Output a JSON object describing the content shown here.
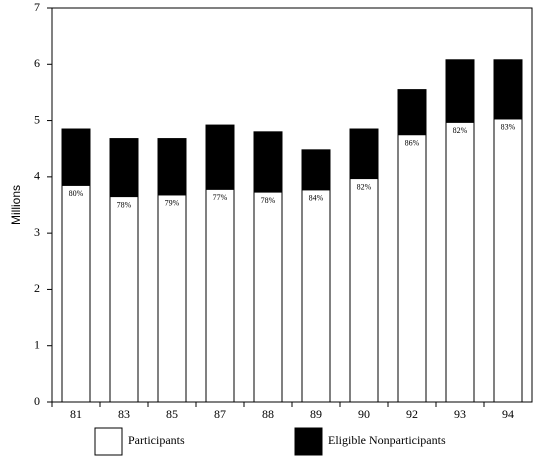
{
  "chart_data": {
    "type": "bar",
    "stacked": true,
    "y_label": "Millions",
    "categories": [
      "81",
      "83",
      "85",
      "87",
      "88",
      "89",
      "90",
      "92",
      "93",
      "94"
    ],
    "series": [
      {
        "name": "Participants",
        "color": "#ffffff",
        "values": [
          3.85,
          3.65,
          3.68,
          3.78,
          3.73,
          3.77,
          3.97,
          4.75,
          4.97,
          5.03
        ]
      },
      {
        "name": "Eligible Nonparticipants",
        "color": "#000000",
        "values": [
          1.0,
          1.03,
          1.0,
          1.14,
          1.07,
          0.71,
          0.88,
          0.8,
          1.11,
          1.05
        ]
      }
    ],
    "annotations": [
      "80%",
      "78%",
      "79%",
      "77%",
      "78%",
      "84%",
      "82%",
      "86%",
      "82%",
      "83%"
    ],
    "ylim": [
      0,
      7
    ],
    "yticks": [
      0,
      1,
      2,
      3,
      4,
      5,
      6,
      7
    ],
    "grid": false
  }
}
